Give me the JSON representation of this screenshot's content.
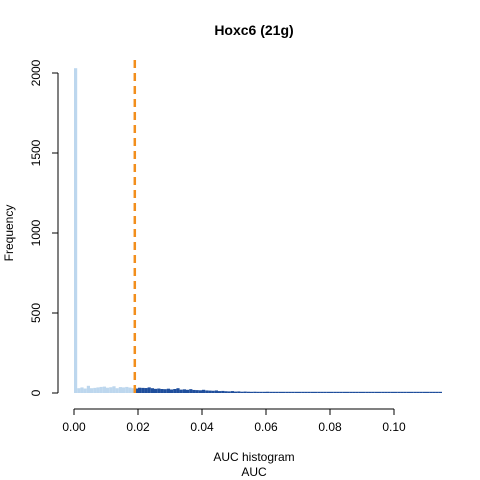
{
  "chart_data": {
    "type": "bar",
    "title": "Hoxc6 (21g)",
    "xlabel": "AUC histogram",
    "xlabel2": "AUC",
    "ylabel": "Frequency",
    "xlim": [
      0,
      0.115
    ],
    "ylim": [
      0,
      2000
    ],
    "x_ticks": [
      0.0,
      0.02,
      0.04,
      0.06,
      0.08,
      0.1
    ],
    "x_tick_labels": [
      "0.00",
      "0.02",
      "0.04",
      "0.06",
      "0.08",
      "0.10"
    ],
    "y_ticks": [
      0,
      500,
      1000,
      1500,
      2000
    ],
    "y_tick_labels": [
      "0",
      "500",
      "1000",
      "1500",
      "2000"
    ],
    "threshold": 0.019,
    "bin_width": 0.001,
    "bin_starts": [
      0.0,
      0.001,
      0.002,
      0.003,
      0.004,
      0.005,
      0.006,
      0.007,
      0.008,
      0.009,
      0.01,
      0.011,
      0.012,
      0.013,
      0.014,
      0.015,
      0.016,
      0.017,
      0.018,
      0.019,
      0.02,
      0.021,
      0.022,
      0.023,
      0.024,
      0.025,
      0.026,
      0.027,
      0.028,
      0.029,
      0.03,
      0.031,
      0.032,
      0.033,
      0.034,
      0.035,
      0.036,
      0.037,
      0.038,
      0.039,
      0.04,
      0.041,
      0.042,
      0.043,
      0.044,
      0.045,
      0.046,
      0.047,
      0.048,
      0.049,
      0.05,
      0.051,
      0.052,
      0.053,
      0.054,
      0.055,
      0.056,
      0.057,
      0.058,
      0.059,
      0.06,
      0.061,
      0.062,
      0.063,
      0.064,
      0.065,
      0.066,
      0.067,
      0.068,
      0.069,
      0.07,
      0.071,
      0.072,
      0.073,
      0.074,
      0.075,
      0.076,
      0.077,
      0.078,
      0.079,
      0.08,
      0.081,
      0.082,
      0.083,
      0.084,
      0.085,
      0.086,
      0.087,
      0.088,
      0.089,
      0.09,
      0.091,
      0.092,
      0.093,
      0.094,
      0.095,
      0.096,
      0.097,
      0.098,
      0.099,
      0.1,
      0.101,
      0.102,
      0.103,
      0.104,
      0.105,
      0.106,
      0.107,
      0.108,
      0.109,
      0.11,
      0.111,
      0.112,
      0.113,
      0.114
    ],
    "frequencies": [
      2030,
      30,
      35,
      28,
      45,
      30,
      32,
      35,
      38,
      40,
      33,
      36,
      42,
      30,
      37,
      35,
      38,
      34,
      30,
      28,
      33,
      32,
      31,
      35,
      30,
      26,
      28,
      25,
      24,
      27,
      22,
      25,
      30,
      21,
      23,
      20,
      24,
      19,
      18,
      17,
      20,
      16,
      15,
      14,
      16,
      12,
      13,
      11,
      10,
      12,
      9,
      10,
      8,
      9,
      8,
      7,
      8,
      6,
      7,
      6,
      8,
      5,
      6,
      5,
      6,
      5,
      4,
      5,
      4,
      4,
      5,
      4,
      3,
      4,
      3,
      3,
      4,
      3,
      3,
      2,
      3,
      2,
      3,
      2,
      2,
      2,
      3,
      2,
      2,
      2,
      2,
      2,
      1,
      2,
      1,
      2,
      1,
      1,
      2,
      1,
      1,
      1,
      1,
      1,
      1,
      1,
      1,
      1,
      1,
      1,
      1,
      1,
      1,
      1,
      1
    ],
    "colors": {
      "below_threshold": "#bdd7ee",
      "above_threshold": "#1f4e9c",
      "threshold_line": "#f28e1c",
      "axis": "#000000"
    }
  }
}
